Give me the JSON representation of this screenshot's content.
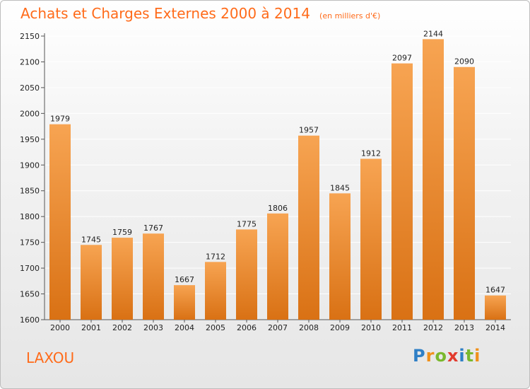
{
  "header": {
    "title": "Achats et Charges Externes 2000 à 2014",
    "unit": "(en milliers d'€)"
  },
  "footer": {
    "city": "LAXOU",
    "logo_text": "Proxiti",
    "logo_colors": [
      "#2e7fc6",
      "#f0901a",
      "#7ab82e",
      "#e23b2e",
      "#2e7fc6",
      "#7ab82e",
      "#f0901a"
    ]
  },
  "colors": {
    "accent": "#ff6b1a",
    "bar_light": "#f7a452",
    "bar_dark": "#d97114",
    "grid": "#ffffff"
  },
  "chart_data": {
    "type": "bar",
    "title": "Achats et Charges Externes 2000 à 2014",
    "categories": [
      "2000",
      "2001",
      "2002",
      "2003",
      "2004",
      "2005",
      "2006",
      "2007",
      "2008",
      "2009",
      "2010",
      "2011",
      "2012",
      "2013",
      "2014"
    ],
    "values": [
      1979,
      1745,
      1759,
      1767,
      1667,
      1712,
      1775,
      1806,
      1957,
      1845,
      1912,
      2097,
      2144,
      2090,
      1647
    ],
    "ylim": [
      1600,
      2150
    ],
    "yticks": [
      1600,
      1650,
      1700,
      1750,
      1800,
      1850,
      1900,
      1950,
      2000,
      2050,
      2100,
      2150
    ],
    "grid": true,
    "xlabel": "",
    "ylabel": ""
  }
}
